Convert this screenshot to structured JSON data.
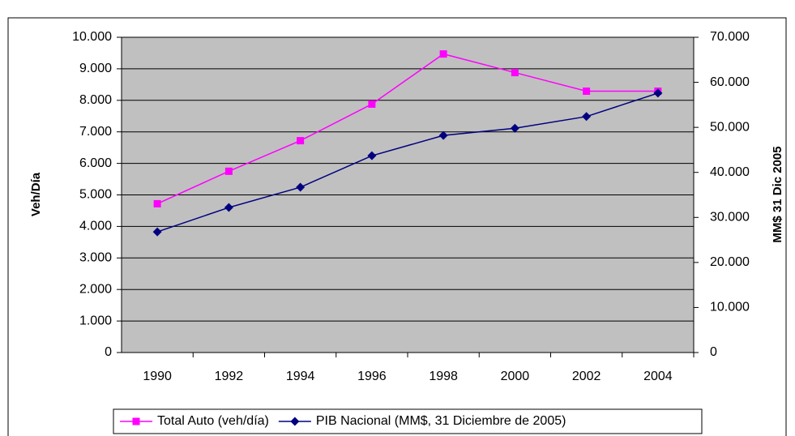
{
  "chart_data": {
    "type": "line",
    "categories": [
      "1990",
      "1992",
      "1994",
      "1996",
      "1998",
      "2000",
      "2002",
      "2004"
    ],
    "series": [
      {
        "name": "Total Auto (veh/día)",
        "color": "#ff00ff",
        "marker": "square",
        "values": [
          4720,
          5750,
          6720,
          7880,
          9470,
          8880,
          8290,
          8290
        ]
      },
      {
        "name": "PIB Nacional (MM$, 31 Diciembre de 2005)",
        "color": "#000080",
        "marker": "diamond",
        "axis": "y2",
        "values": [
          26800,
          32200,
          36700,
          43700,
          48200,
          49800,
          52400,
          57600
        ]
      }
    ],
    "ylabel": "Veh/Día",
    "y2label": "MM$ 31 Dic 2005",
    "ylim": [
      0,
      10000
    ],
    "yticks": [
      0,
      {
        "value": 1000,
        "label": "1.000"
      },
      {
        "value": 2000,
        "label": "2.000"
      },
      {
        "value": 3000,
        "label": "3.000"
      },
      {
        "value": 4000,
        "label": "4.000"
      },
      {
        "value": 5000,
        "label": "5.000"
      },
      {
        "value": 6000,
        "label": "6.000"
      },
      {
        "value": 7000,
        "label": "7.000"
      },
      {
        "value": 8000,
        "label": "8.000"
      },
      {
        "value": 9000,
        "label": "9.000"
      },
      {
        "value": 10000,
        "label": "10.000"
      }
    ],
    "y2lim": [
      0,
      70000
    ],
    "y2ticks": [
      0,
      {
        "value": 10000,
        "label": "10.000"
      },
      {
        "value": 20000,
        "label": "20.000"
      },
      {
        "value": 30000,
        "label": "30.000"
      },
      {
        "value": 40000,
        "label": "40.000"
      },
      {
        "value": 50000,
        "label": "50.000"
      },
      {
        "value": 60000,
        "label": "60.000"
      },
      {
        "value": 70000,
        "label": "70.000"
      }
    ],
    "grid": true,
    "legend": "bottom",
    "plot_background": "#c0c0c0"
  }
}
